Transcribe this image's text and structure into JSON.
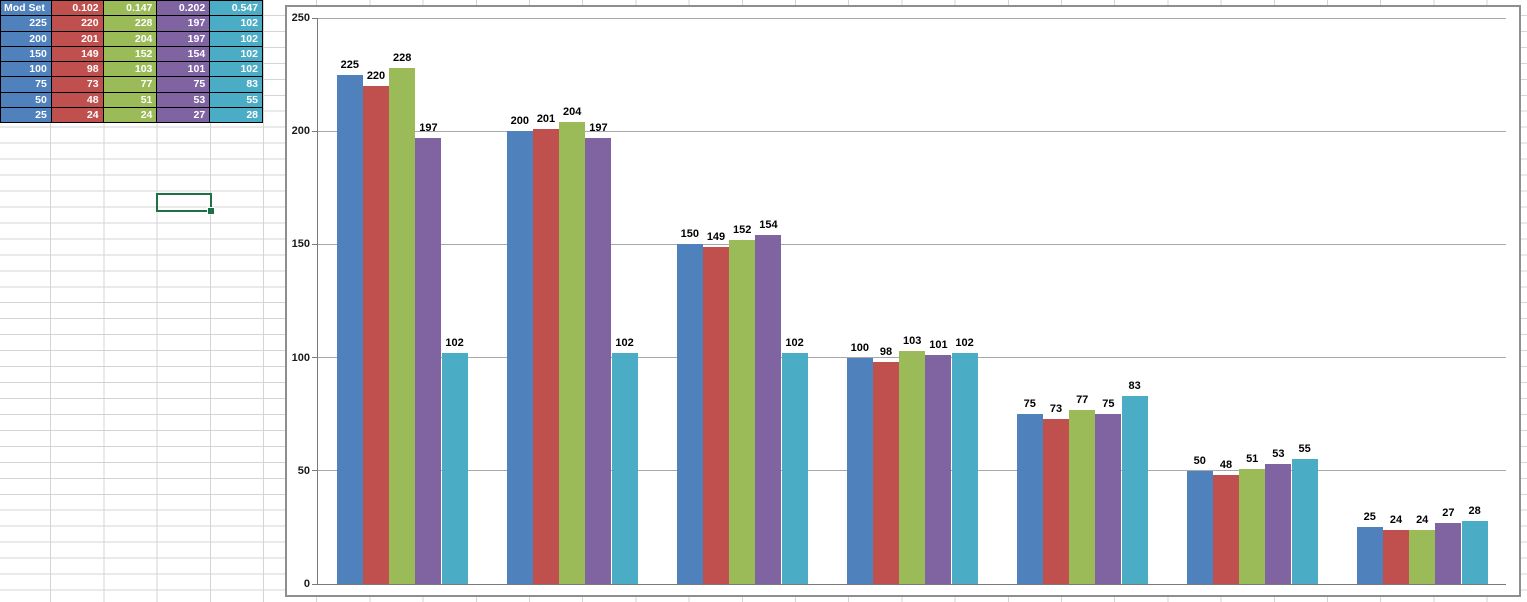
{
  "spreadsheet": {
    "table": {
      "header": [
        "Mod Set",
        "0.102",
        "0.147",
        "0.202",
        "0.547"
      ],
      "rows": [
        [
          "225",
          "220",
          "228",
          "197",
          "102"
        ],
        [
          "200",
          "201",
          "204",
          "197",
          "102"
        ],
        [
          "150",
          "149",
          "152",
          "154",
          "102"
        ],
        [
          "100",
          "98",
          "103",
          "101",
          "102"
        ],
        [
          "75",
          "73",
          "77",
          "75",
          "83"
        ],
        [
          "50",
          "48",
          "51",
          "53",
          "55"
        ],
        [
          "25",
          "24",
          "24",
          "27",
          "28"
        ]
      ],
      "column_colors": [
        "#4F81BD",
        "#C0504D",
        "#9BBB59",
        "#8064A2",
        "#4BACC6"
      ],
      "border_color": "#000000"
    },
    "selection_color": "#1E7145"
  },
  "chart_data": {
    "type": "bar",
    "title": "",
    "legend": "none",
    "grid": true,
    "data_labels": true,
    "categories": [
      "",
      "",
      "",
      "",
      "",
      "",
      ""
    ],
    "series": [
      {
        "name": "Mod Set",
        "color": "#4F81BD",
        "values": [
          225,
          200,
          150,
          100,
          75,
          50,
          25
        ]
      },
      {
        "name": "0.102",
        "color": "#C0504D",
        "values": [
          220,
          201,
          149,
          98,
          73,
          48,
          24
        ]
      },
      {
        "name": "0.147",
        "color": "#9BBB59",
        "values": [
          228,
          204,
          152,
          103,
          77,
          51,
          24
        ]
      },
      {
        "name": "0.202",
        "color": "#8064A2",
        "values": [
          197,
          197,
          154,
          101,
          75,
          53,
          27
        ]
      },
      {
        "name": "0.547",
        "color": "#4BACC6",
        "values": [
          102,
          102,
          102,
          102,
          83,
          55,
          28
        ]
      }
    ],
    "ylim": [
      0,
      250
    ],
    "yticks": [
      250,
      200,
      150,
      100,
      50,
      0
    ],
    "gridline_color": "#a8a8a8",
    "axis_color": "#7a7a7a"
  }
}
